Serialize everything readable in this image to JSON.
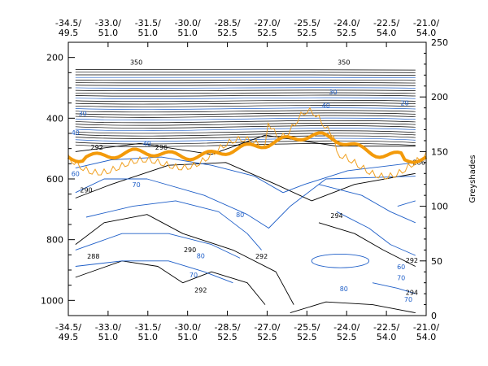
{
  "chart_data": {
    "type": "contour",
    "title": "",
    "colors": {
      "isentrope": "#000000",
      "humidity": "#1f5fc8",
      "tropopause": "#f39a0a",
      "thin_line": "#f0a020"
    },
    "x_ticks": [
      {
        "lon": "-34.5/",
        "lat": "49.5"
      },
      {
        "lon": "-33.0/",
        "lat": "51.0"
      },
      {
        "lon": "-31.5/",
        "lat": "51.0"
      },
      {
        "lon": "-30.0/",
        "lat": "51.0"
      },
      {
        "lon": "-28.5/",
        "lat": "52.5"
      },
      {
        "lon": "-27.0/",
        "lat": "52.5"
      },
      {
        "lon": "-25.5/",
        "lat": "52.5"
      },
      {
        "lon": "-24.0/",
        "lat": "52.5"
      },
      {
        "lon": "-22.5/",
        "lat": "54.0"
      },
      {
        "lon": "-21.0/",
        "lat": "54.0"
      }
    ],
    "y_left": {
      "ticks": [
        200,
        400,
        600,
        800,
        1000
      ],
      "range": [
        1050,
        150
      ],
      "label": ""
    },
    "y_right": {
      "ticks": [
        0,
        50,
        100,
        150,
        200,
        250
      ],
      "range": [
        0,
        250
      ],
      "label": "Greyshades"
    },
    "black_labels": [
      {
        "text": "290",
        "pos": [
          0.05,
          0.64
        ]
      },
      {
        "text": "288",
        "pos": [
          0.07,
          0.95
        ]
      },
      {
        "text": "292",
        "pos": [
          0.08,
          0.44
        ]
      },
      {
        "text": "296",
        "pos": [
          0.26,
          0.44
        ]
      },
      {
        "text": "290",
        "pos": [
          0.34,
          0.92
        ]
      },
      {
        "text": "292",
        "pos": [
          0.37,
          1.11
        ]
      },
      {
        "text": "292",
        "pos": [
          0.54,
          0.95
        ]
      },
      {
        "text": "294",
        "pos": [
          0.75,
          0.76
        ]
      },
      {
        "text": "292",
        "pos": [
          0.96,
          0.97
        ]
      },
      {
        "text": "294",
        "pos": [
          0.96,
          1.12
        ]
      },
      {
        "text": "286",
        "pos": [
          0.98,
          0.51
        ]
      },
      {
        "text": "350",
        "pos": [
          0.19,
          0.04
        ]
      },
      {
        "text": "350",
        "pos": [
          0.77,
          0.04
        ]
      }
    ],
    "blue_labels": [
      {
        "text": "40",
        "pos": [
          0.02,
          0.34
        ]
      },
      {
        "text": "30",
        "pos": [
          0.04,
          0.27
        ]
      },
      {
        "text": "40",
        "pos": [
          0.22,
          0.38
        ]
      },
      {
        "text": "60",
        "pos": [
          0.02,
          0.49
        ]
      },
      {
        "text": "70",
        "pos": [
          0.19,
          0.53
        ]
      },
      {
        "text": "80",
        "pos": [
          0.48,
          0.64
        ]
      },
      {
        "text": "80",
        "pos": [
          0.37,
          0.79
        ]
      },
      {
        "text": "70",
        "pos": [
          0.35,
          0.86
        ]
      },
      {
        "text": "80",
        "pos": [
          0.77,
          0.91
        ]
      },
      {
        "text": "60",
        "pos": [
          0.93,
          0.83
        ]
      },
      {
        "text": "70",
        "pos": [
          0.93,
          0.87
        ]
      },
      {
        "text": "70",
        "pos": [
          0.95,
          0.95
        ]
      },
      {
        "text": "40",
        "pos": [
          0.72,
          0.24
        ]
      },
      {
        "text": "30",
        "pos": [
          0.74,
          0.19
        ]
      },
      {
        "text": "20",
        "pos": [
          0.94,
          0.23
        ]
      }
    ]
  }
}
